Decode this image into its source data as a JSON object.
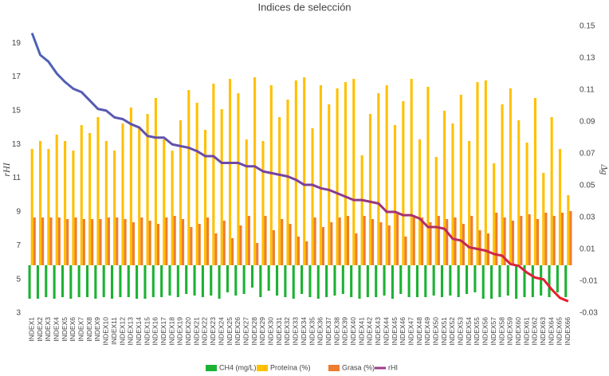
{
  "chart_data": {
    "type": "bar_line",
    "title": "Indices de selección",
    "y_label": "rHI",
    "y2_label": "Δg",
    "categories": [
      "INDEX1",
      "INDEX2",
      "INDEX3",
      "INDEX4",
      "INDEX5",
      "INDEX6",
      "INDEX7",
      "INDEX8",
      "INDEX9",
      "INDEX10",
      "INDEX11",
      "INDEX12",
      "INDEX13",
      "INDEX14",
      "INDEX15",
      "INDEX16",
      "INDEX17",
      "INDEX18",
      "INDEX19",
      "INDEX20",
      "INDEX21",
      "INDEX22",
      "INDEX23",
      "INDEX24",
      "INDEX25",
      "INDEX26",
      "INDEX27",
      "INDEX28",
      "INDEX29",
      "INDEX30",
      "INDEX31",
      "INDEX32",
      "INDEX33",
      "INDEX34",
      "INDEX35",
      "INDEX36",
      "INDEX37",
      "INDEX38",
      "INDEX39",
      "INDEX40",
      "INDEX41",
      "INDEX42",
      "INDEX43",
      "INDEX44",
      "INDEX45",
      "INDEX46",
      "INDEX47",
      "INDEX48",
      "INDEX49",
      "INDEX50",
      "INDEX51",
      "INDEX52",
      "INDEX53",
      "INDEX54",
      "INDEX55",
      "INDEX56",
      "INDEX57",
      "INDEX58",
      "INDEX59",
      "INDEX60",
      "INDEX61",
      "INDEX62",
      "INDEX63",
      "INDEX64",
      "INDEX65",
      "INDEX66"
    ],
    "ylim": [
      3,
      20
    ],
    "yticks": [
      3,
      5,
      7,
      9,
      11,
      13,
      15,
      17,
      19
    ],
    "y2lim": [
      -0.03,
      0.15
    ],
    "y2ticks": [
      -0.03,
      -0.01,
      0.01,
      0.03,
      0.05,
      0.07,
      0.09,
      0.11,
      0.13,
      0.15
    ],
    "series": [
      {
        "name": "CH4 (mg/L)",
        "type": "bar",
        "axis": "y2",
        "color": "#1db233",
        "values": [
          -0.021,
          -0.021,
          -0.02,
          -0.021,
          -0.02,
          -0.021,
          -0.02,
          -0.02,
          -0.021,
          -0.02,
          -0.021,
          -0.02,
          -0.02,
          -0.021,
          -0.021,
          -0.02,
          -0.02,
          -0.019,
          -0.02,
          -0.018,
          -0.019,
          -0.02,
          -0.019,
          -0.021,
          -0.017,
          -0.019,
          -0.018,
          -0.014,
          -0.02,
          -0.016,
          -0.019,
          -0.02,
          -0.021,
          -0.018,
          -0.02,
          -0.021,
          -0.02,
          -0.019,
          -0.018,
          -0.02,
          -0.021,
          -0.02,
          -0.02,
          -0.019,
          -0.021,
          -0.018,
          -0.02,
          -0.02,
          -0.02,
          -0.019,
          -0.02,
          -0.019,
          -0.02,
          -0.018,
          -0.017,
          -0.021,
          -0.021,
          -0.02,
          -0.019,
          -0.021,
          -0.02,
          -0.02,
          -0.019,
          -0.02,
          -0.017,
          -0.02
        ]
      },
      {
        "name": "Proteína (%)",
        "type": "bar",
        "axis": "y2",
        "color": "#ffc000",
        "values": [
          0.073,
          0.078,
          0.073,
          0.082,
          0.078,
          0.072,
          0.088,
          0.083,
          0.093,
          0.078,
          0.072,
          0.089,
          0.099,
          0.087,
          0.095,
          0.105,
          0.079,
          0.072,
          0.091,
          0.11,
          0.102,
          0.085,
          0.114,
          0.098,
          0.117,
          0.108,
          0.079,
          0.118,
          0.078,
          0.113,
          0.093,
          0.104,
          0.116,
          0.118,
          0.086,
          0.113,
          0.101,
          0.111,
          0.115,
          0.117,
          0.069,
          0.095,
          0.108,
          0.113,
          0.088,
          0.103,
          0.117,
          0.079,
          0.112,
          0.068,
          0.097,
          0.089,
          0.107,
          0.078,
          0.115,
          0.116,
          0.064,
          0.101,
          0.111,
          0.091,
          0.077,
          0.105,
          0.058,
          0.093,
          0.073,
          0.044
        ]
      },
      {
        "name": "Grasa (%)",
        "type": "bar",
        "axis": "y2",
        "color": "#ed7d31",
        "values": [
          0.03,
          0.03,
          0.03,
          0.03,
          0.029,
          0.03,
          0.029,
          0.029,
          0.029,
          0.03,
          0.03,
          0.029,
          0.027,
          0.03,
          0.028,
          0.026,
          0.03,
          0.031,
          0.029,
          0.024,
          0.026,
          0.03,
          0.02,
          0.028,
          0.017,
          0.025,
          0.031,
          0.014,
          0.031,
          0.022,
          0.029,
          0.026,
          0.018,
          0.015,
          0.03,
          0.024,
          0.027,
          0.03,
          0.031,
          0.02,
          0.031,
          0.029,
          0.027,
          0.025,
          0.032,
          0.018,
          0.03,
          0.03,
          0.027,
          0.031,
          0.029,
          0.03,
          0.026,
          0.031,
          0.022,
          0.02,
          0.033,
          0.03,
          0.028,
          0.031,
          0.032,
          0.029,
          0.033,
          0.031,
          0.033,
          0.034
        ]
      },
      {
        "name": "rHI",
        "type": "line",
        "axis": "y",
        "color": "#a03b8a",
        "gradient": [
          "#4b63b8",
          "#7a3f9f",
          "#ee1c25"
        ],
        "values": [
          19.6,
          18.3,
          17.9,
          17.2,
          16.7,
          16.3,
          16.1,
          15.6,
          15.1,
          15.0,
          14.6,
          14.5,
          14.2,
          14.0,
          13.5,
          13.4,
          13.4,
          13.0,
          12.9,
          12.8,
          12.6,
          12.3,
          12.3,
          11.9,
          11.9,
          11.9,
          11.7,
          11.7,
          11.4,
          11.3,
          11.2,
          11.1,
          10.9,
          10.6,
          10.6,
          10.4,
          10.3,
          10.1,
          9.9,
          9.7,
          9.7,
          9.6,
          9.5,
          9.0,
          9.0,
          8.8,
          8.8,
          8.6,
          8.1,
          8.1,
          8.0,
          7.4,
          7.3,
          6.9,
          6.8,
          6.7,
          6.5,
          6.4,
          5.9,
          5.8,
          5.4,
          5.1,
          5.0,
          4.4,
          3.9,
          3.7
        ]
      }
    ]
  }
}
